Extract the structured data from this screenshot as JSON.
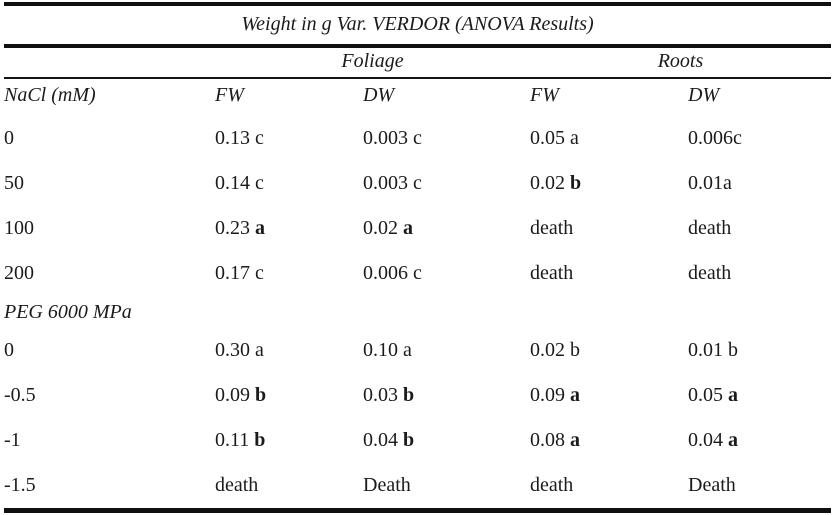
{
  "table": {
    "title": "Weight in g Var. VERDOR (ANOVA Results)",
    "group_headers": [
      "Foliage",
      "Roots"
    ],
    "columns": [
      "NaCl (mM)",
      "FW",
      "DW",
      "FW",
      "DW"
    ],
    "sections": [
      {
        "label": "",
        "rows": [
          {
            "label": "0",
            "cells": [
              [
                "0.13 c",
                ""
              ],
              [
                "0.003 c",
                ""
              ],
              [
                "0.05 a",
                ""
              ],
              [
                "0.006c",
                ""
              ]
            ]
          },
          {
            "label": "50",
            "cells": [
              [
                "0.14 c",
                ""
              ],
              [
                "0.003 c",
                ""
              ],
              [
                "0.02 ",
                "b"
              ],
              [
                "0.01a",
                ""
              ]
            ]
          },
          {
            "label": "100",
            "cells": [
              [
                "0.23 ",
                "a"
              ],
              [
                "0.02 ",
                "a"
              ],
              [
                "death",
                ""
              ],
              [
                "death",
                ""
              ]
            ]
          },
          {
            "label": "200",
            "cells": [
              [
                "0.17 c",
                ""
              ],
              [
                "0.006 c",
                ""
              ],
              [
                "death",
                ""
              ],
              [
                "death",
                ""
              ]
            ]
          }
        ]
      },
      {
        "label": "PEG 6000 MPa",
        "rows": [
          {
            "label": "0",
            "cells": [
              [
                "0.30 a",
                ""
              ],
              [
                "0.10 a",
                ""
              ],
              [
                "0.02 b",
                ""
              ],
              [
                "0.01 b",
                ""
              ]
            ]
          },
          {
            "label": "-0.5",
            "cells": [
              [
                "0.09 ",
                "b"
              ],
              [
                "0.03 ",
                "b"
              ],
              [
                "0.09 ",
                "a"
              ],
              [
                "0.05 ",
                "a"
              ]
            ]
          },
          {
            "label": "-1",
            "cells": [
              [
                "0.11 ",
                "b"
              ],
              [
                "0.04 ",
                "b"
              ],
              [
                "0.08 ",
                "a"
              ],
              [
                "0.04 ",
                "a"
              ]
            ]
          },
          {
            "label": "-1.5",
            "cells": [
              [
                "death",
                ""
              ],
              [
                "Death",
                ""
              ],
              [
                "death",
                ""
              ],
              [
                "Death",
                ""
              ]
            ]
          }
        ]
      }
    ],
    "colors": {
      "text": "#1b1b1b",
      "rule": "#101010",
      "background": "#ffffff"
    }
  }
}
